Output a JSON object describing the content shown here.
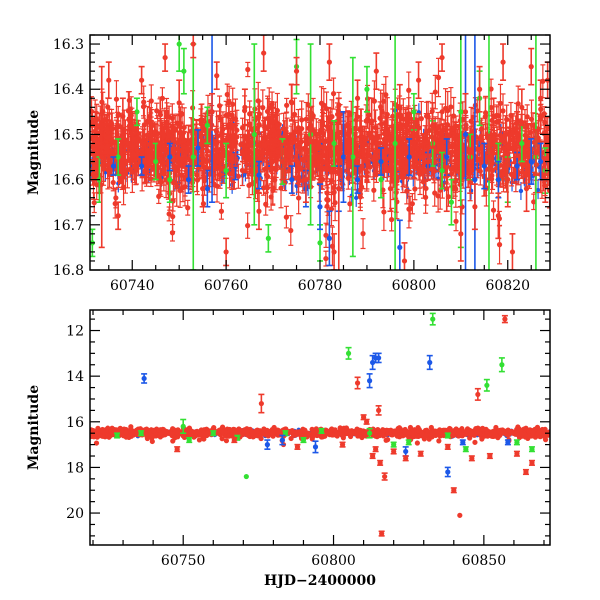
{
  "colors": {
    "red": "#ee3a2c",
    "green": "#33e033",
    "blue": "#1c58e8",
    "frame": "#000000"
  },
  "chart_data": [
    {
      "type": "scatter",
      "panel": "top",
      "xlabel": "",
      "ylabel": "Magnitude",
      "xlim": [
        60731,
        60829
      ],
      "ylim": [
        16.8,
        16.28
      ],
      "y_inverted": true,
      "x_ticks": [
        "60740",
        "60760",
        "60780",
        "60800",
        "60820"
      ],
      "y_ticks": [
        "16.3",
        "16.4",
        "16.5",
        "16.6",
        "16.7",
        "16.8"
      ],
      "grid": false,
      "legend": "none",
      "series": [
        {
          "color": "#33e033",
          "points": [
            [
              60731.5,
              16.74,
              0.03
            ],
            [
              60733,
              16.6,
              0.05
            ],
            [
              60737,
              16.55,
              0.04
            ],
            [
              60741,
              16.45,
              0.03
            ],
            [
              60745,
              16.56,
              0.04
            ],
            [
              60748,
              16.6,
              0.05
            ],
            [
              60750,
              16.3,
              0.06
            ],
            [
              60751,
              16.36,
              0.05
            ],
            [
              60753,
              16.55,
              0.25
            ],
            [
              60756,
              16.48,
              0.04
            ],
            [
              60760,
              16.58,
              0.06
            ],
            [
              60766,
              16.5,
              0.2
            ],
            [
              60769,
              16.73,
              0.03
            ],
            [
              60772,
              16.56,
              0.05
            ],
            [
              60775,
              16.35,
              0.06
            ],
            [
              60778,
              16.5,
              0.2
            ],
            [
              60780,
              16.74,
              0.04
            ],
            [
              60783,
              16.52,
              0.05
            ],
            [
              60787,
              16.55,
              0.22
            ],
            [
              60790,
              16.4,
              0.05
            ],
            [
              60793,
              16.6,
              0.04
            ],
            [
              60796,
              16.52,
              0.3
            ],
            [
              60800,
              16.45,
              0.04
            ],
            [
              60804,
              16.52,
              0.05
            ],
            [
              60806,
              16.58,
              0.04
            ],
            [
              60808,
              16.65,
              0.05
            ],
            [
              60810,
              16.45,
              0.3
            ],
            [
              60812,
              16.55,
              0.05
            ],
            [
              60814,
              16.42,
              0.06
            ],
            [
              60816,
              16.55,
              0.35
            ],
            [
              60818,
              16.56,
              0.04
            ],
            [
              60820,
              16.6,
              0.05
            ],
            [
              60823,
              16.52,
              0.04
            ],
            [
              60826,
              16.55,
              0.3
            ],
            [
              60828,
              16.58,
              0.05
            ]
          ]
        },
        {
          "color": "#1c58e8",
          "points": [
            [
              60736,
              16.57,
              0.02
            ],
            [
              60742,
              16.57,
              0.02
            ],
            [
              60748,
              16.55,
              0.03
            ],
            [
              60752,
              16.6,
              0.03
            ],
            [
              60754,
              16.53,
              0.04
            ],
            [
              60756,
              16.62,
              0.04
            ],
            [
              60757,
              16.45,
              0.2
            ],
            [
              60762,
              16.57,
              0.03
            ],
            [
              60767,
              16.59,
              0.03
            ],
            [
              60774,
              16.6,
              0.03
            ],
            [
              60777,
              16.62,
              0.04
            ],
            [
              60780,
              16.66,
              0.05
            ],
            [
              60782,
              16.73,
              0.06
            ],
            [
              60784,
              16.62,
              0.05
            ],
            [
              60785,
              16.55,
              0.1
            ],
            [
              60788,
              16.6,
              0.03
            ],
            [
              60793,
              16.56,
              0.03
            ],
            [
              60797,
              16.75,
              0.06
            ],
            [
              60799,
              16.55,
              0.04
            ],
            [
              60803,
              16.57,
              0.03
            ],
            [
              60807,
              16.55,
              0.04
            ],
            [
              60811,
              16.5,
              0.3
            ],
            [
              60813,
              16.6,
              0.35
            ],
            [
              60815,
              16.57,
              0.05
            ],
            [
              60818,
              16.6,
              0.04
            ],
            [
              60822,
              16.57,
              0.03
            ],
            [
              60825,
              16.56,
              0.05
            ],
            [
              60827,
              16.56,
              0.04
            ]
          ]
        },
        {
          "color": "#ee3a2c",
          "points": [
            [
              60731.5,
              16.48,
              0.03
            ],
            [
              60732,
              16.57,
              0.04
            ],
            [
              60733.5,
              16.55,
              0.2
            ],
            [
              60735,
              16.38,
              0.04
            ],
            [
              60737,
              16.68,
              0.03
            ],
            [
              60738,
              16.46,
              0.04
            ],
            [
              60740,
              16.5,
              0.05
            ],
            [
              60742,
              16.38,
              0.03
            ],
            [
              60744,
              16.55,
              0.04
            ],
            [
              60746,
              16.52,
              0.05
            ],
            [
              60747,
              16.33,
              0.03
            ],
            [
              60749,
              16.57,
              0.04
            ],
            [
              60750,
              16.43,
              0.05
            ],
            [
              60752,
              16.52,
              0.04
            ],
            [
              60753,
              16.3,
              0.03
            ],
            [
              60755,
              16.62,
              0.04
            ],
            [
              60757,
              16.45,
              0.04
            ],
            [
              60758,
              16.37,
              0.03
            ],
            [
              60760,
              16.76,
              0.03
            ],
            [
              60762,
              16.52,
              0.05
            ],
            [
              60764,
              16.44,
              0.04
            ],
            [
              60765,
              16.55,
              0.04
            ],
            [
              60767,
              16.67,
              0.04
            ],
            [
              60768,
              16.32,
              0.04
            ],
            [
              60770,
              16.49,
              0.05
            ],
            [
              60772,
              16.56,
              0.04
            ],
            [
              60774,
              16.43,
              0.04
            ],
            [
              60775,
              16.36,
              0.03
            ],
            [
              60777,
              16.6,
              0.05
            ],
            [
              60778,
              16.48,
              0.04
            ],
            [
              60780,
              16.55,
              0.05
            ],
            [
              60782,
              16.34,
              0.04
            ],
            [
              60783,
              16.76,
              0.04
            ],
            [
              60784,
              16.62,
              0.2
            ],
            [
              60786,
              16.5,
              0.05
            ],
            [
              60788,
              16.42,
              0.04
            ],
            [
              60789,
              16.57,
              0.05
            ],
            [
              60791,
              16.47,
              0.05
            ],
            [
              60792,
              16.36,
              0.04
            ],
            [
              60794,
              16.54,
              0.04
            ],
            [
              60795,
              16.62,
              0.05
            ],
            [
              60797,
              16.44,
              0.05
            ],
            [
              60798,
              16.78,
              0.04
            ],
            [
              60800,
              16.52,
              0.05
            ],
            [
              60801,
              16.38,
              0.04
            ],
            [
              60803,
              16.56,
              0.04
            ],
            [
              60804,
              16.48,
              0.05
            ],
            [
              60806,
              16.33,
              0.03
            ],
            [
              60807,
              16.62,
              0.05
            ],
            [
              60809,
              16.53,
              0.05
            ],
            [
              60810,
              16.72,
              0.06
            ],
            [
              60811,
              16.45,
              0.04
            ],
            [
              60812,
              16.58,
              0.05
            ],
            [
              60813,
              16.66,
              0.05
            ],
            [
              60814,
              16.4,
              0.05
            ],
            [
              60816,
              16.55,
              0.05
            ],
            [
              60817,
              16.46,
              0.04
            ],
            [
              60818,
              16.68,
              0.05
            ],
            [
              60819,
              16.34,
              0.04
            ],
            [
              60820,
              16.6,
              0.06
            ],
            [
              60821,
              16.76,
              0.04
            ],
            [
              60822,
              16.5,
              0.05
            ],
            [
              60823,
              16.44,
              0.04
            ],
            [
              60824,
              16.62,
              0.05
            ],
            [
              60825,
              16.35,
              0.04
            ],
            [
              60826,
              16.54,
              0.05
            ],
            [
              60827,
              16.42,
              0.04
            ],
            [
              60828,
              16.6,
              0.05
            ],
            [
              60828.5,
              16.38,
              0.04
            ]
          ]
        }
      ]
    },
    {
      "type": "scatter",
      "panel": "bottom",
      "xlabel": "HJD−2400000",
      "ylabel": "Magnitude",
      "xlim": [
        60719,
        60872
      ],
      "ylim": [
        21.4,
        11.1
      ],
      "y_inverted": true,
      "x_ticks": [
        "60750",
        "60800",
        "60850"
      ],
      "y_ticks": [
        "12",
        "14",
        "16",
        "18",
        "20"
      ],
      "grid": false,
      "legend": "none",
      "series": [
        {
          "color": "#33e033",
          "points": [
            [
              60728,
              16.6,
              0.1
            ],
            [
              60736,
              16.5,
              0.1
            ],
            [
              60750,
              16.2,
              0.3
            ],
            [
              60752,
              16.8,
              0.1
            ],
            [
              60760,
              16.5,
              0.1
            ],
            [
              60768,
              16.7,
              0.1
            ],
            [
              60771,
              18.4,
              0.0
            ],
            [
              60784,
              16.5,
              0.1
            ],
            [
              60790,
              16.8,
              0.1
            ],
            [
              60796,
              16.4,
              0.1
            ],
            [
              60805,
              13.0,
              0.25
            ],
            [
              60812,
              16.5,
              0.2
            ],
            [
              60820,
              17.0,
              0.1
            ],
            [
              60825,
              16.9,
              0.1
            ],
            [
              60833,
              11.5,
              0.25
            ],
            [
              60838,
              16.6,
              0.1
            ],
            [
              60844,
              17.2,
              0.1
            ],
            [
              60851,
              14.4,
              0.25
            ],
            [
              60856,
              13.5,
              0.3
            ],
            [
              60861,
              16.9,
              0.1
            ],
            [
              60866,
              17.2,
              0.1
            ]
          ]
        },
        {
          "color": "#1c58e8",
          "points": [
            [
              60737,
              14.1,
              0.2
            ],
            [
              60778,
              17.0,
              0.2
            ],
            [
              60783,
              16.8,
              0.2
            ],
            [
              60794,
              17.1,
              0.25
            ],
            [
              60812,
              14.2,
              0.3
            ],
            [
              60813,
              13.4,
              0.3
            ],
            [
              60814,
              13.2,
              0.2
            ],
            [
              60815,
              13.2,
              0.2
            ],
            [
              60824,
              17.3,
              0.2
            ],
            [
              60832,
              13.4,
              0.3
            ],
            [
              60838,
              18.2,
              0.2
            ],
            [
              60843,
              16.9,
              0.1
            ],
            [
              60858,
              16.9,
              0.1
            ]
          ]
        },
        {
          "color": "#ee3a2c",
          "points": [
            [
              60748,
              17.2,
              0.1
            ],
            [
              60767,
              16.8,
              0.1
            ],
            [
              60776,
              15.2,
              0.4
            ],
            [
              60788,
              17.1,
              0.1
            ],
            [
              60803,
              17.0,
              0.1
            ],
            [
              60808,
              14.3,
              0.25
            ],
            [
              60810,
              15.8,
              0.1
            ],
            [
              60811,
              16.0,
              0.1
            ],
            [
              60813,
              17.5,
              0.1
            ],
            [
              60814,
              17.2,
              0.1
            ],
            [
              60815,
              15.5,
              0.2
            ],
            [
              60815.5,
              17.8,
              0.1
            ],
            [
              60816,
              20.9,
              0.1
            ],
            [
              60817,
              18.4,
              0.15
            ],
            [
              60820,
              17.3,
              0.1
            ],
            [
              60824,
              17.6,
              0.1
            ],
            [
              60829,
              17.4,
              0.1
            ],
            [
              60838,
              17.1,
              0.1
            ],
            [
              60840,
              19.0,
              0.1
            ],
            [
              60842,
              20.1,
              0.0
            ],
            [
              60846,
              17.6,
              0.1
            ],
            [
              60848,
              14.8,
              0.25
            ],
            [
              60852,
              17.5,
              0.1
            ],
            [
              60857,
              11.5,
              0.15
            ],
            [
              60861,
              17.4,
              0.1
            ],
            [
              60864,
              18.2,
              0.1
            ],
            [
              60866,
              17.8,
              0.1
            ]
          ]
        }
      ]
    }
  ]
}
